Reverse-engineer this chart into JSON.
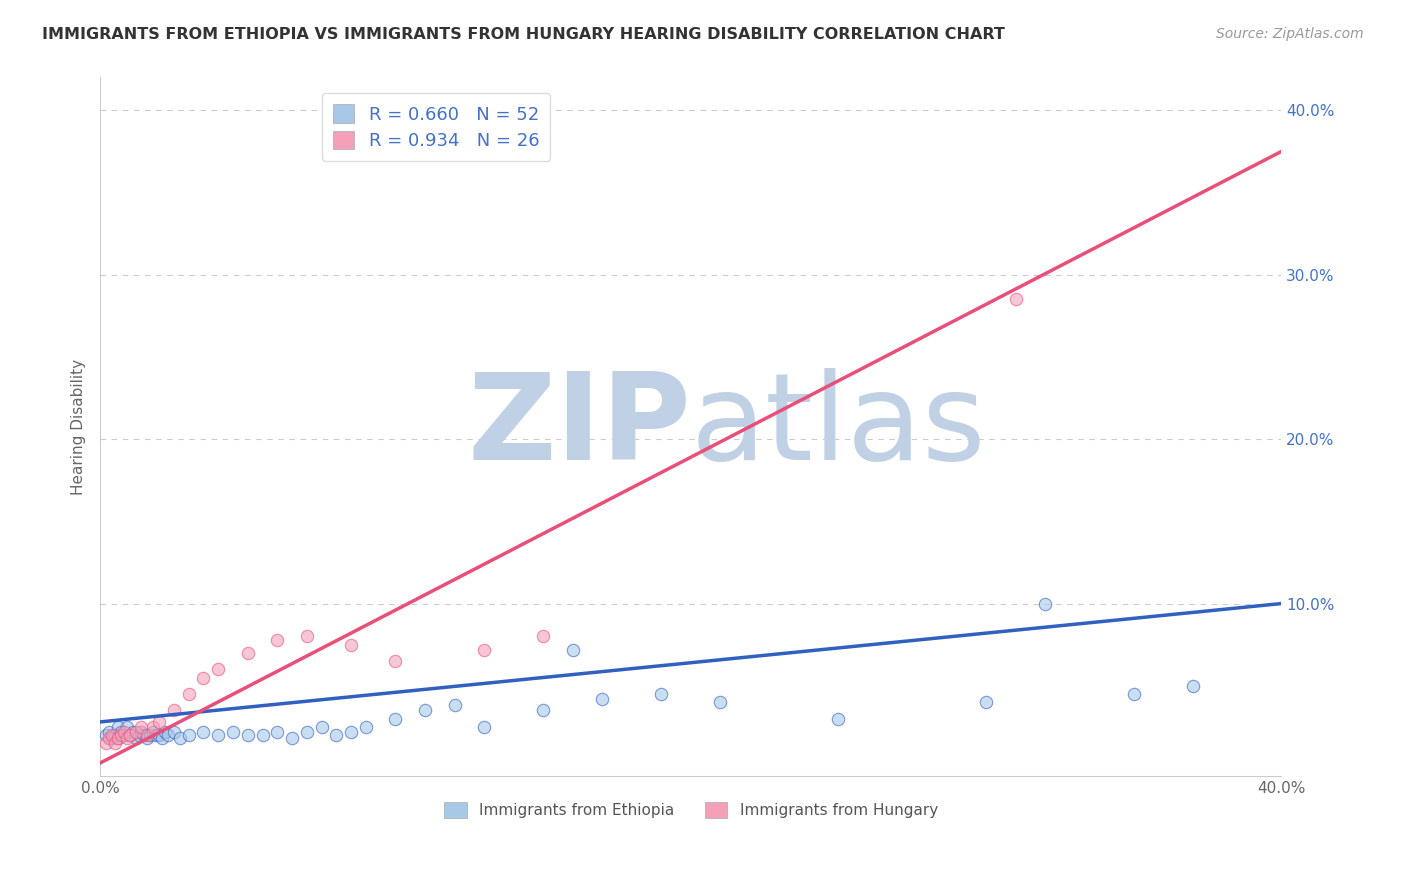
{
  "title": "IMMIGRANTS FROM ETHIOPIA VS IMMIGRANTS FROM HUNGARY HEARING DISABILITY CORRELATION CHART",
  "source_text": "Source: ZipAtlas.com",
  "ylabel": "Hearing Disability",
  "xlim": [
    0.0,
    0.4
  ],
  "ylim": [
    -0.005,
    0.42
  ],
  "legend_blue_label": "R = 0.660   N = 52",
  "legend_pink_label": "R = 0.934   N = 26",
  "blue_color": "#A8C8E8",
  "pink_color": "#F4A0B8",
  "blue_line_color": "#3060C0",
  "pink_line_color": "#E8507A",
  "legend_text_color": "#4472C4",
  "watermark_zip_color": "#C0D0E5",
  "watermark_atlas_color": "#C0D0E5",
  "title_color": "#333333",
  "grid_color": "#CCCCCC",
  "ethiopia_x": [
    0.002,
    0.003,
    0.004,
    0.005,
    0.006,
    0.006,
    0.007,
    0.008,
    0.009,
    0.01,
    0.011,
    0.012,
    0.013,
    0.014,
    0.015,
    0.016,
    0.017,
    0.018,
    0.019,
    0.02,
    0.021,
    0.022,
    0.023,
    0.025,
    0.027,
    0.03,
    0.035,
    0.04,
    0.045,
    0.05,
    0.055,
    0.06,
    0.065,
    0.07,
    0.075,
    0.08,
    0.085,
    0.09,
    0.1,
    0.11,
    0.12,
    0.13,
    0.15,
    0.17,
    0.19,
    0.21,
    0.16,
    0.25,
    0.3,
    0.32,
    0.35,
    0.37
  ],
  "ethiopia_y": [
    0.02,
    0.022,
    0.018,
    0.02,
    0.025,
    0.018,
    0.022,
    0.02,
    0.025,
    0.02,
    0.022,
    0.018,
    0.02,
    0.022,
    0.02,
    0.018,
    0.02,
    0.022,
    0.02,
    0.02,
    0.018,
    0.022,
    0.02,
    0.022,
    0.018,
    0.02,
    0.022,
    0.02,
    0.022,
    0.02,
    0.02,
    0.022,
    0.018,
    0.022,
    0.025,
    0.02,
    0.022,
    0.025,
    0.03,
    0.035,
    0.038,
    0.025,
    0.035,
    0.042,
    0.045,
    0.04,
    0.072,
    0.03,
    0.04,
    0.1,
    0.045,
    0.05
  ],
  "hungary_x": [
    0.002,
    0.003,
    0.004,
    0.005,
    0.006,
    0.007,
    0.008,
    0.009,
    0.01,
    0.012,
    0.014,
    0.016,
    0.018,
    0.02,
    0.025,
    0.03,
    0.035,
    0.04,
    0.05,
    0.06,
    0.07,
    0.085,
    0.1,
    0.13,
    0.15,
    0.31
  ],
  "hungary_y": [
    0.015,
    0.018,
    0.02,
    0.015,
    0.018,
    0.02,
    0.022,
    0.018,
    0.02,
    0.022,
    0.025,
    0.02,
    0.025,
    0.028,
    0.035,
    0.045,
    0.055,
    0.06,
    0.07,
    0.078,
    0.08,
    0.075,
    0.065,
    0.072,
    0.08,
    0.285
  ],
  "ethiopia_line_x": [
    0.0,
    0.4
  ],
  "ethiopia_line_y": [
    0.028,
    0.1
  ],
  "hungary_line_x": [
    0.0,
    0.4
  ],
  "hungary_line_y": [
    0.003,
    0.375
  ]
}
